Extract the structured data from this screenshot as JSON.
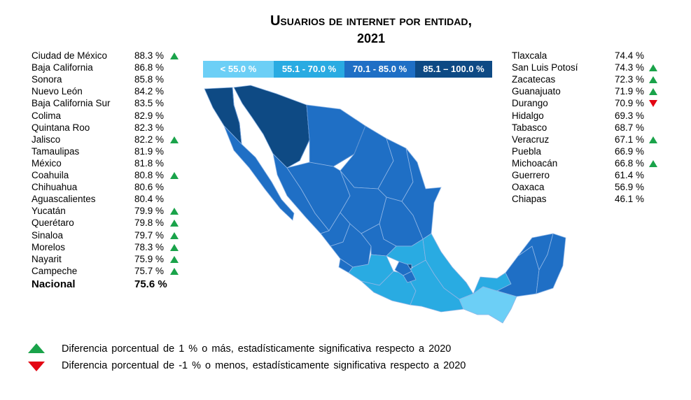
{
  "title": {
    "line1": "Usuarios de internet por entidad,",
    "line2": "2021"
  },
  "legend": [
    {
      "label": "< 55.0 %",
      "color": "#6ccff6"
    },
    {
      "label": "55.1 - 70.0 %",
      "color": "#29abe2"
    },
    {
      "label": "70.1 - 85.0 %",
      "color": "#1f6fc5"
    },
    {
      "label": "85.1 – 100.0 %",
      "color": "#0e4a84"
    }
  ],
  "left_list": [
    {
      "name": "Ciudad de México",
      "value": "88.3 %",
      "mark": "up"
    },
    {
      "name": "Baja California",
      "value": "86.8 %",
      "mark": ""
    },
    {
      "name": "Sonora",
      "value": "85.8 %",
      "mark": ""
    },
    {
      "name": "Nuevo León",
      "value": "84.2 %",
      "mark": ""
    },
    {
      "name": "Baja California Sur",
      "value": "83.5 %",
      "mark": ""
    },
    {
      "name": "Colima",
      "value": "82.9 %",
      "mark": ""
    },
    {
      "name": "Quintana Roo",
      "value": "82.3 %",
      "mark": ""
    },
    {
      "name": "Jalisco",
      "value": "82.2  %",
      "mark": "up"
    },
    {
      "name": "Tamaulipas",
      "value": "81.9 %",
      "mark": ""
    },
    {
      "name": "México",
      "value": "81.8 %",
      "mark": ""
    },
    {
      "name": "Coahuila",
      "value": "80.8 %",
      "mark": "up"
    },
    {
      "name": "Chihuahua",
      "value": "80.6 %",
      "mark": ""
    },
    {
      "name": "Aguascalientes",
      "value": "80.4 %",
      "mark": ""
    },
    {
      "name": "Yucatán",
      "value": "79.9 %",
      "mark": "up"
    },
    {
      "name": "Querétaro",
      "value": "79.8 %",
      "mark": "up"
    },
    {
      "name": "Sinaloa",
      "value": "79.7 %",
      "mark": "up"
    },
    {
      "name": "Morelos",
      "value": "78.3 %",
      "mark": "up"
    },
    {
      "name": "Nayarit",
      "value": "75.9 %",
      "mark": "up"
    },
    {
      "name": "Campeche",
      "value": "75.7 %",
      "mark": "up"
    }
  ],
  "nacional": {
    "name": "Nacional",
    "value": "75.6 %"
  },
  "right_list": [
    {
      "name": "Tlaxcala",
      "value": "74.4 %",
      "mark": ""
    },
    {
      "name": "San Luis Potosí",
      "value": "74.3 %",
      "mark": "up"
    },
    {
      "name": "Zacatecas",
      "value": "72.3 %",
      "mark": "up"
    },
    {
      "name": "Guanajuato",
      "value": "71.9 %",
      "mark": "up"
    },
    {
      "name": "Durango",
      "value": "70.9 %",
      "mark": "down"
    },
    {
      "name": "Hidalgo",
      "value": "69.3 %",
      "mark": ""
    },
    {
      "name": "Tabasco",
      "value": "68.7 %",
      "mark": ""
    },
    {
      "name": "Veracruz",
      "value": "67.1 %",
      "mark": "up"
    },
    {
      "name": "Puebla",
      "value": "66.9 %",
      "mark": ""
    },
    {
      "name": "Michoacán",
      "value": "66.8 %",
      "mark": "up"
    },
    {
      "name": "Guerrero",
      "value": "61.4 %",
      "mark": ""
    },
    {
      "name": "Oaxaca",
      "value": "56.9 %",
      "mark": ""
    },
    {
      "name": "Chiapas",
      "value": "46.1 %",
      "mark": ""
    }
  ],
  "footnotes": {
    "up": "Diferencia porcentual de 1 % o más, estadísticamente significativa respecto a 2020",
    "down": "Diferencia porcentual de -1 % o menos, estadísticamente significativa respecto a 2020"
  }
}
